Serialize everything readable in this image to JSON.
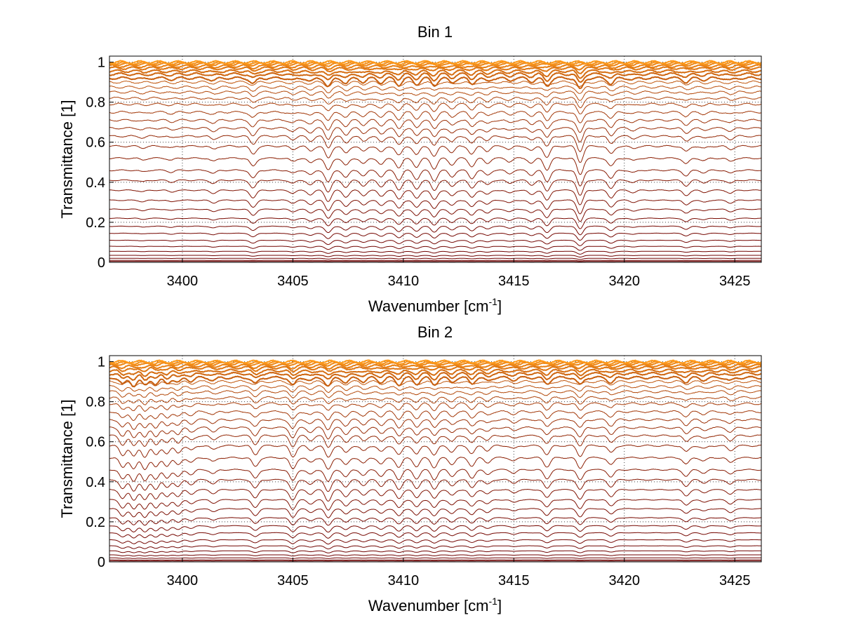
{
  "chart_data": [
    {
      "type": "line",
      "title": "Bin 1",
      "xlabel": "Wavenumber [cm",
      "xlabel_sup": "-1",
      "xlabel_end": "]",
      "ylabel": "Transmittance [1]",
      "xlim": [
        3396.7,
        3426.2
      ],
      "ylim": [
        0,
        1.03
      ],
      "xticks": [
        3400,
        3405,
        3410,
        3415,
        3420,
        3425
      ],
      "xtick_labels": [
        "3400",
        "3405",
        "3410",
        "3415",
        "3420",
        "3425"
      ],
      "yticks": [
        0,
        0.2,
        0.4,
        0.6,
        0.8,
        1
      ],
      "ytick_labels": [
        "0",
        "0.2",
        "0.4",
        "0.6",
        "0.8",
        "1"
      ],
      "grid": true,
      "series_count": 34,
      "baseline_levels": [
        0.005,
        0.01,
        0.02,
        0.035,
        0.055,
        0.08,
        0.11,
        0.145,
        0.18,
        0.22,
        0.265,
        0.31,
        0.36,
        0.41,
        0.46,
        0.52,
        0.58,
        0.63,
        0.67,
        0.71,
        0.75,
        0.79,
        0.82,
        0.85,
        0.875,
        0.9,
        0.92,
        0.94,
        0.955,
        0.97,
        0.98,
        0.99,
        0.995,
        1.0
      ],
      "absorption_lines": [
        {
          "x": 3398.2,
          "depth": 0.1
        },
        {
          "x": 3399.5,
          "depth": 0.12
        },
        {
          "x": 3401.4,
          "depth": 0.2
        },
        {
          "x": 3403.2,
          "depth": 0.5
        },
        {
          "x": 3405.0,
          "depth": 0.2
        },
        {
          "x": 3405.8,
          "depth": 0.3
        },
        {
          "x": 3406.6,
          "depth": 0.75
        },
        {
          "x": 3407.4,
          "depth": 0.45
        },
        {
          "x": 3408.2,
          "depth": 0.35
        },
        {
          "x": 3409.0,
          "depth": 0.4
        },
        {
          "x": 3409.8,
          "depth": 0.6
        },
        {
          "x": 3410.6,
          "depth": 0.55
        },
        {
          "x": 3411.4,
          "depth": 0.65
        },
        {
          "x": 3412.2,
          "depth": 0.4
        },
        {
          "x": 3413.1,
          "depth": 0.5
        },
        {
          "x": 3413.8,
          "depth": 0.3
        },
        {
          "x": 3414.8,
          "depth": 0.2
        },
        {
          "x": 3415.8,
          "depth": 0.3
        },
        {
          "x": 3416.5,
          "depth": 0.7
        },
        {
          "x": 3418.0,
          "depth": 1.0
        },
        {
          "x": 3419.4,
          "depth": 0.5
        },
        {
          "x": 3420.4,
          "depth": 0.15
        },
        {
          "x": 3422.8,
          "depth": 0.35
        },
        {
          "x": 3423.6,
          "depth": 0.15
        },
        {
          "x": 3424.8,
          "depth": 0.2
        }
      ],
      "color_low": "#6e0000",
      "color_high": "#ff9a1a"
    },
    {
      "type": "line",
      "title": "Bin 2",
      "xlabel": "Wavenumber [cm",
      "xlabel_sup": "-1",
      "xlabel_end": "]",
      "ylabel": "Transmittance [1]",
      "xlim": [
        3396.7,
        3426.2
      ],
      "ylim": [
        0,
        1.03
      ],
      "xticks": [
        3400,
        3405,
        3410,
        3415,
        3420,
        3425
      ],
      "xtick_labels": [
        "3400",
        "3405",
        "3410",
        "3415",
        "3420",
        "3425"
      ],
      "yticks": [
        0,
        0.2,
        0.4,
        0.6,
        0.8,
        1
      ],
      "ytick_labels": [
        "0",
        "0.2",
        "0.4",
        "0.6",
        "0.8",
        "1"
      ],
      "grid": true,
      "series_count": 34,
      "baseline_levels": [
        0.005,
        0.01,
        0.02,
        0.035,
        0.055,
        0.08,
        0.11,
        0.145,
        0.18,
        0.22,
        0.265,
        0.31,
        0.36,
        0.41,
        0.46,
        0.52,
        0.58,
        0.63,
        0.67,
        0.71,
        0.75,
        0.79,
        0.82,
        0.85,
        0.875,
        0.9,
        0.92,
        0.94,
        0.955,
        0.97,
        0.98,
        0.99,
        0.995,
        1.0
      ],
      "absorption_lines": [
        {
          "x": 3397.3,
          "depth": 0.6
        },
        {
          "x": 3397.8,
          "depth": 0.7
        },
        {
          "x": 3398.3,
          "depth": 0.7
        },
        {
          "x": 3398.8,
          "depth": 0.6
        },
        {
          "x": 3399.3,
          "depth": 0.5
        },
        {
          "x": 3399.8,
          "depth": 0.45
        },
        {
          "x": 3400.4,
          "depth": 0.3
        },
        {
          "x": 3401.4,
          "depth": 0.25
        },
        {
          "x": 3403.3,
          "depth": 0.55
        },
        {
          "x": 3405.0,
          "depth": 0.7
        },
        {
          "x": 3405.8,
          "depth": 0.3
        },
        {
          "x": 3406.6,
          "depth": 0.75
        },
        {
          "x": 3407.4,
          "depth": 0.45
        },
        {
          "x": 3408.2,
          "depth": 0.35
        },
        {
          "x": 3409.0,
          "depth": 0.4
        },
        {
          "x": 3409.8,
          "depth": 0.6
        },
        {
          "x": 3410.6,
          "depth": 0.55
        },
        {
          "x": 3411.4,
          "depth": 0.6
        },
        {
          "x": 3412.2,
          "depth": 0.4
        },
        {
          "x": 3413.1,
          "depth": 0.5
        },
        {
          "x": 3413.8,
          "depth": 0.3
        },
        {
          "x": 3415.0,
          "depth": 0.2
        },
        {
          "x": 3416.5,
          "depth": 0.55
        },
        {
          "x": 3418.0,
          "depth": 0.65
        },
        {
          "x": 3419.4,
          "depth": 0.45
        },
        {
          "x": 3422.8,
          "depth": 0.4
        },
        {
          "x": 3423.6,
          "depth": 0.2
        },
        {
          "x": 3424.8,
          "depth": 0.3
        }
      ],
      "color_low": "#6e0000",
      "color_high": "#ff9a1a"
    }
  ]
}
